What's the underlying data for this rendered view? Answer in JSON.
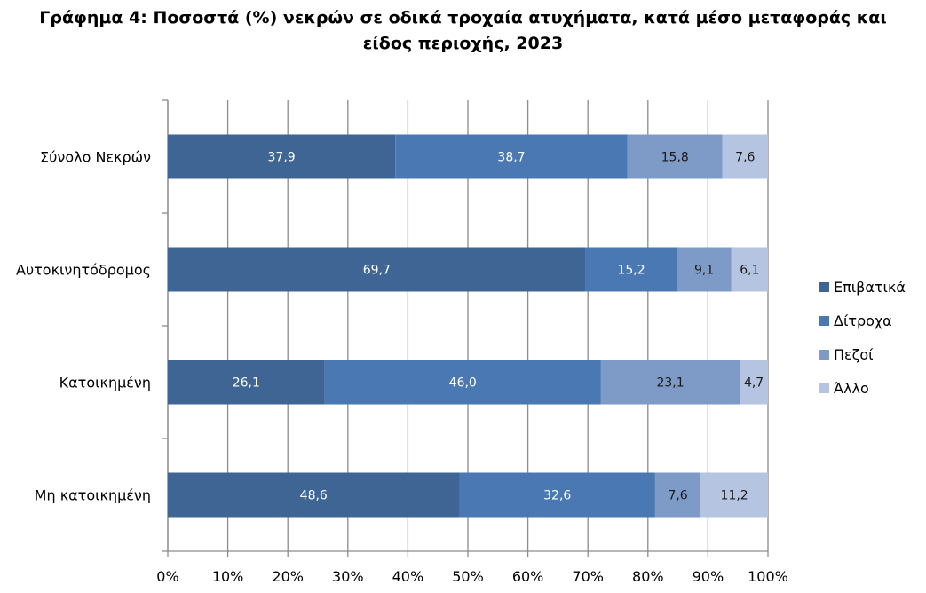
{
  "chart_data": {
    "type": "bar",
    "orientation": "horizontal",
    "stacked": "percent",
    "title": "Γράφημα 4: Ποσοστά (%) νεκρών σε οδικά τροχαία ατυχήματα, κατά μέσο μεταφοράς και είδος περιοχής, 2023",
    "title_lines": [
      "Γράφημα 4: Ποσοστά (%) νεκρών σε οδικά τροχαία ατυχήματα, κατά μέσο μεταφοράς και",
      "είδος περιοχής, 2023"
    ],
    "categories": [
      "Σύνολο Νεκρών",
      "Αυτοκινητόδρομος",
      "Κατοικημένη",
      "Μη κατοικημένη"
    ],
    "series": [
      {
        "name": "Επιβατικά",
        "color": "#3f6595",
        "values": [
          37.9,
          69.7,
          26.1,
          48.6
        ],
        "labels": [
          "37,9",
          "69,7",
          "26,1",
          "48,6"
        ]
      },
      {
        "name": "Δίτροχα",
        "color": "#4a78b3",
        "values": [
          38.7,
          15.2,
          46.0,
          32.6
        ],
        "labels": [
          "38,7",
          "15,2",
          "46,0",
          "32,6"
        ]
      },
      {
        "name": "Πεζοί",
        "color": "#7e9bc8",
        "values": [
          15.8,
          9.1,
          23.1,
          7.6
        ],
        "labels": [
          "15,8",
          "9,1",
          "23,1",
          "7,6"
        ]
      },
      {
        "name": "Άλλο",
        "color": "#b5c4e0",
        "values": [
          7.6,
          6.1,
          4.7,
          11.2
        ],
        "labels": [
          "7,6",
          "6,1",
          "4,7",
          "11,2"
        ]
      }
    ],
    "xlim": [
      0,
      100
    ],
    "xticks": [
      "0%",
      "10%",
      "20%",
      "30%",
      "40%",
      "50%",
      "60%",
      "70%",
      "80%",
      "90%",
      "100%"
    ],
    "grid": true,
    "legend": "right"
  }
}
